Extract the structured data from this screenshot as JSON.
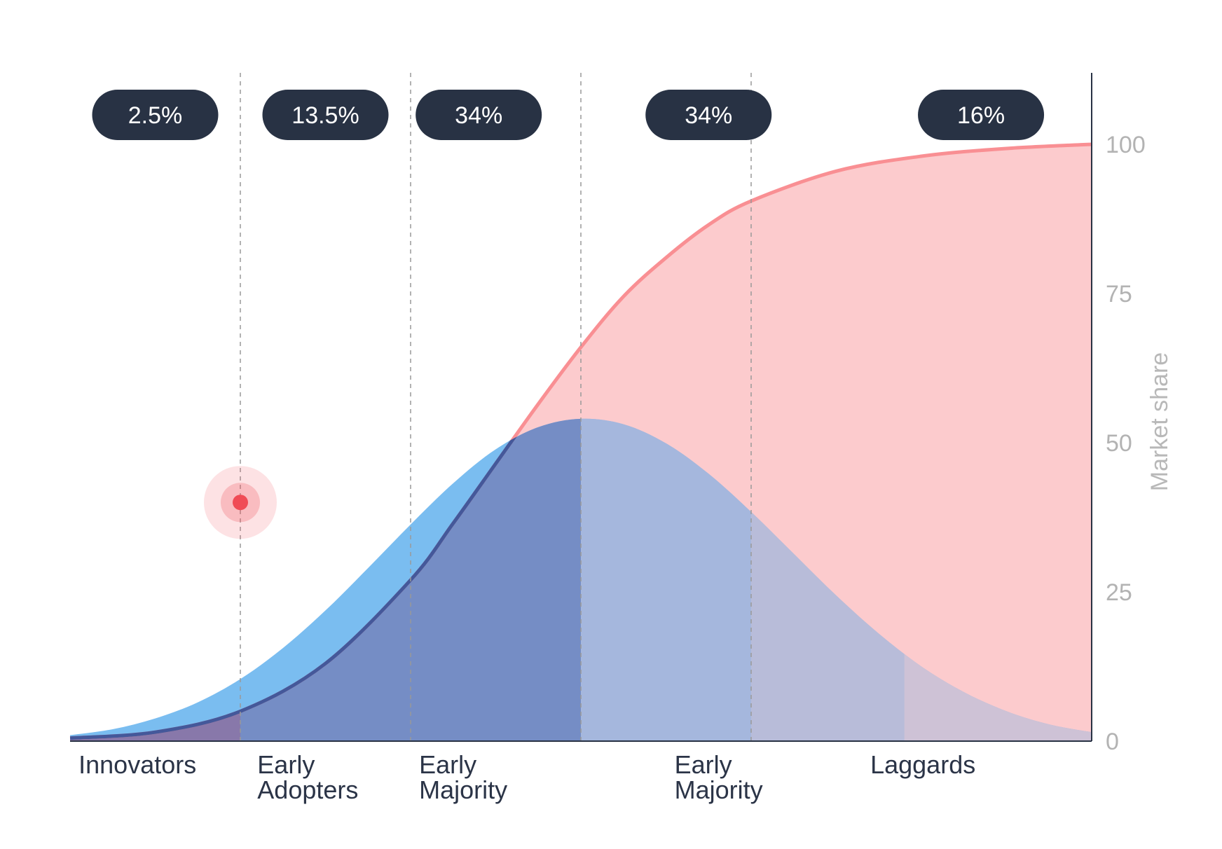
{
  "chart_data": {
    "type": "area",
    "title": "",
    "xlabel": "",
    "ylabel": "Market share",
    "ylim": [
      0,
      100
    ],
    "yticks": [
      0,
      25,
      50,
      75,
      100
    ],
    "grid": false,
    "segments": [
      {
        "label_lines": [
          "Innovators"
        ],
        "share": "2.5%",
        "x_start": -3.0,
        "x_end": -2.0
      },
      {
        "label_lines": [
          "Early",
          "Adopters"
        ],
        "share": "13.5%",
        "x_start": -2.0,
        "x_end": -1.0
      },
      {
        "label_lines": [
          "Early",
          "Majority"
        ],
        "share": "34%",
        "x_start": -1.0,
        "x_end": 0.0
      },
      {
        "label_lines": [
          "Early",
          "Majority"
        ],
        "share": "34%",
        "x_start": 0.0,
        "x_end": 1.0
      },
      {
        "label_lines": [
          "Laggards"
        ],
        "share": "16%",
        "x_start": 1.0,
        "x_end": 3.0
      }
    ],
    "x_range": [
      -3.0,
      3.0
    ],
    "series": [
      {
        "kind": "adoption-distribution",
        "x": [
          -3.0,
          -2.75,
          -2.5,
          -2.25,
          -2.0,
          -1.75,
          -1.5,
          -1.25,
          -1.0,
          -0.75,
          -0.5,
          -0.25,
          0.0,
          0.25,
          0.5,
          0.75,
          1.0,
          1.25,
          1.5,
          1.75,
          2.0,
          2.25,
          2.5,
          2.75,
          3.0
        ],
        "values": [
          1.0,
          2.0,
          3.8,
          6.5,
          10.4,
          15.6,
          21.9,
          29.0,
          36.3,
          43.2,
          48.9,
          52.6,
          54.0,
          53.1,
          49.9,
          44.8,
          38.4,
          31.4,
          24.4,
          18.0,
          12.5,
          8.2,
          5.0,
          2.8,
          1.5
        ]
      },
      {
        "kind": "cumulative-market-share",
        "x": [
          -3.0,
          -2.5,
          -2.0,
          -1.5,
          -1.0,
          -0.75,
          -0.5,
          -0.25,
          0.0,
          0.25,
          0.5,
          0.75,
          1.0,
          1.5,
          2.0,
          2.5,
          3.0
        ],
        "values": [
          0.5,
          1.5,
          5.0,
          13.0,
          27.0,
          36.5,
          46.5,
          56.5,
          66.0,
          74.5,
          81.0,
          86.5,
          90.5,
          95.5,
          98.0,
          99.3,
          100.0
        ]
      }
    ],
    "marker": {
      "x": -2.0,
      "y": 40
    },
    "colors": {
      "bell_light": "#7abdf0",
      "bell_fill": "#a5b7dd",
      "bell_dark": "#758dc5",
      "overlap_innovators": "#8878aa",
      "overlap_late": "#b8bcd9",
      "overlap_laggards": "#cec2d6",
      "cumulative_fill": "#fccbcd",
      "cumulative_line": "#f98f93",
      "cumulative_line_dark": "#44589a",
      "badge": "#283244",
      "marker": "#f04b55",
      "axis": "#283244",
      "divider": "#999999",
      "label_text": "#2b3447",
      "tick_text": "#b3b3b3"
    }
  }
}
